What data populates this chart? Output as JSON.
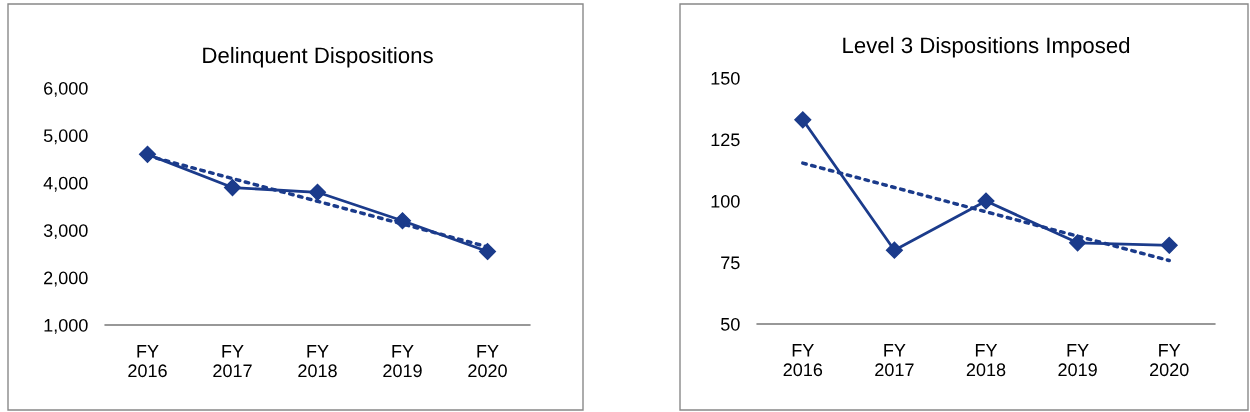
{
  "chart_data": [
    {
      "type": "line",
      "title": "Delinquent Dispositions",
      "categories": [
        "FY\n2016",
        "FY\n2017",
        "FY\n2018",
        "FY\n2019",
        "FY\n2020"
      ],
      "ylim": [
        1000,
        6000
      ],
      "yticks": [
        {
          "value": 1000,
          "label": "1,000"
        },
        {
          "value": 2000,
          "label": "2,000"
        },
        {
          "value": 3000,
          "label": "3,000"
        },
        {
          "value": 4000,
          "label": "4,000"
        },
        {
          "value": 5000,
          "label": "5,000"
        },
        {
          "value": 6000,
          "label": "6,000"
        }
      ],
      "grid": false,
      "series": [
        {
          "color": "#1b3b8b",
          "marker": "diamond",
          "line_style": "solid",
          "values": [
            4600,
            3900,
            3800,
            3200,
            2550
          ]
        },
        {
          "color": "#1b3b8b",
          "marker": "none",
          "line_style": "dotted",
          "values": [
            4570,
            4090,
            3610,
            3130,
            2650
          ]
        }
      ]
    },
    {
      "type": "line",
      "title": "Level 3 Dispositions Imposed",
      "categories": [
        "FY\n2016",
        "FY\n2017",
        "FY\n2018",
        "FY\n2019",
        "FY\n2020"
      ],
      "ylim": [
        50,
        150
      ],
      "yticks": [
        50,
        75,
        100,
        125,
        150
      ],
      "grid": false,
      "series": [
        {
          "color": "#1b3b8b",
          "marker": "diamond",
          "line_style": "solid",
          "values": [
            133,
            80,
            100,
            83,
            82
          ]
        },
        {
          "color": "#1b3b8b",
          "marker": "none",
          "line_style": "dotted",
          "values": [
            115.4,
            105.5,
            95.6,
            85.7,
            75.8
          ]
        }
      ]
    }
  ]
}
